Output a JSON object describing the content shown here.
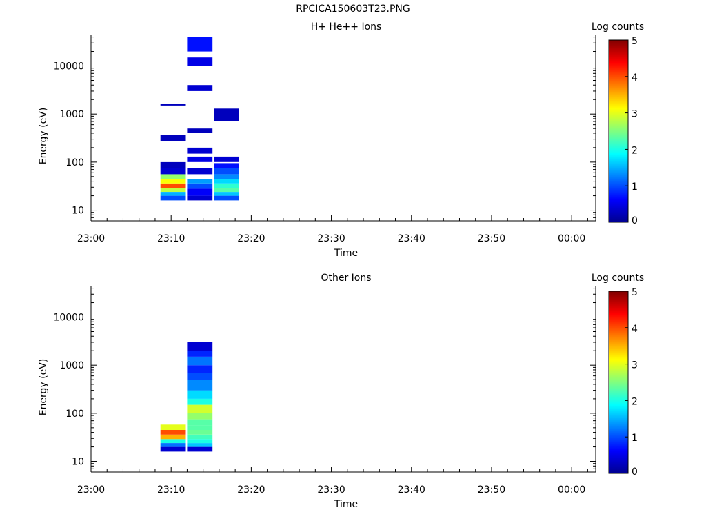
{
  "title": "RPCICA150603T23.PNG",
  "colorbar": {
    "label": "Log counts",
    "ticks": [
      "0",
      "1",
      "2",
      "3",
      "4",
      "5"
    ]
  },
  "x_ticks": [
    "23:00",
    "23:10",
    "23:20",
    "23:30",
    "23:40",
    "23:50",
    "00:00"
  ],
  "y_ticks": [
    "10",
    "100",
    "1000",
    "10000"
  ],
  "chart_data": [
    {
      "type": "heatmap",
      "title": "H+ He++ Ions",
      "xlabel": "Time",
      "ylabel": "Energy (eV)",
      "y_scale": "log",
      "ylim": [
        6,
        45000
      ],
      "xlim": [
        "23:00",
        "00:03"
      ],
      "color_scale": "jet",
      "clim": [
        0,
        5
      ],
      "colorbar_label": "Log counts",
      "columns": [
        {
          "t_start": "23:08:40",
          "t_end": "23:11:50",
          "bins": [
            [
              16,
              20,
              1.0
            ],
            [
              20,
              24,
              1.5
            ],
            [
              24,
              29,
              2.8
            ],
            [
              29,
              36,
              4.0
            ],
            [
              36,
              45,
              3.1
            ],
            [
              45,
              56,
              2.6
            ],
            [
              56,
              75,
              0.4
            ],
            [
              75,
              100,
              0.3
            ],
            [
              270,
              370,
              0.3
            ],
            [
              1500,
              1650,
              0.3
            ]
          ]
        },
        {
          "t_start": "23:12:00",
          "t_end": "23:15:10",
          "bins": [
            [
              16,
              20,
              0.4
            ],
            [
              20,
              28,
              0.6
            ],
            [
              28,
              36,
              1.0
            ],
            [
              36,
              45,
              1.4
            ],
            [
              56,
              75,
              0.4
            ],
            [
              100,
              130,
              0.5
            ],
            [
              150,
              200,
              0.4
            ],
            [
              400,
              500,
              0.3
            ],
            [
              3000,
              4000,
              0.4
            ],
            [
              10000,
              15000,
              0.5
            ],
            [
              20000,
              40000,
              0.7
            ]
          ]
        },
        {
          "t_start": "23:15:20",
          "t_end": "23:18:30",
          "bins": [
            [
              16,
              20,
              1.0
            ],
            [
              20,
              24,
              1.6
            ],
            [
              24,
              29,
              2.3
            ],
            [
              29,
              36,
              2.1
            ],
            [
              36,
              45,
              1.7
            ],
            [
              45,
              56,
              1.3
            ],
            [
              56,
              75,
              1.0
            ],
            [
              75,
              95,
              0.7
            ],
            [
              100,
              130,
              0.4
            ],
            [
              700,
              1300,
              0.3
            ]
          ]
        }
      ]
    },
    {
      "type": "heatmap",
      "title": "Other Ions",
      "xlabel": "Time",
      "ylabel": "Energy (eV)",
      "y_scale": "log",
      "ylim": [
        6,
        45000
      ],
      "xlim": [
        "23:00",
        "00:03"
      ],
      "color_scale": "jet",
      "clim": [
        0,
        5
      ],
      "colorbar_label": "Log counts",
      "columns": [
        {
          "t_start": "23:08:40",
          "t_end": "23:11:50",
          "bins": [
            [
              16,
              20,
              0.4
            ],
            [
              20,
              24,
              1.2
            ],
            [
              24,
              29,
              2.0
            ],
            [
              29,
              36,
              3.5
            ],
            [
              36,
              45,
              4.0
            ],
            [
              45,
              58,
              3.0
            ]
          ]
        },
        {
          "t_start": "23:12:00",
          "t_end": "23:15:10",
          "bins": [
            [
              16,
              20,
              0.4
            ],
            [
              20,
              24,
              1.6
            ],
            [
              24,
              29,
              2.0
            ],
            [
              29,
              36,
              2.2
            ],
            [
              36,
              45,
              2.4
            ],
            [
              45,
              56,
              2.3
            ],
            [
              56,
              75,
              2.3
            ],
            [
              75,
              100,
              2.6
            ],
            [
              100,
              150,
              2.9
            ],
            [
              150,
              200,
              2.0
            ],
            [
              200,
              300,
              1.7
            ],
            [
              300,
              500,
              1.3
            ],
            [
              500,
              700,
              1.0
            ],
            [
              700,
              1000,
              0.8
            ],
            [
              1000,
              1500,
              1.2
            ],
            [
              1500,
              2000,
              0.8
            ],
            [
              2000,
              3000,
              0.4
            ]
          ]
        }
      ]
    }
  ]
}
